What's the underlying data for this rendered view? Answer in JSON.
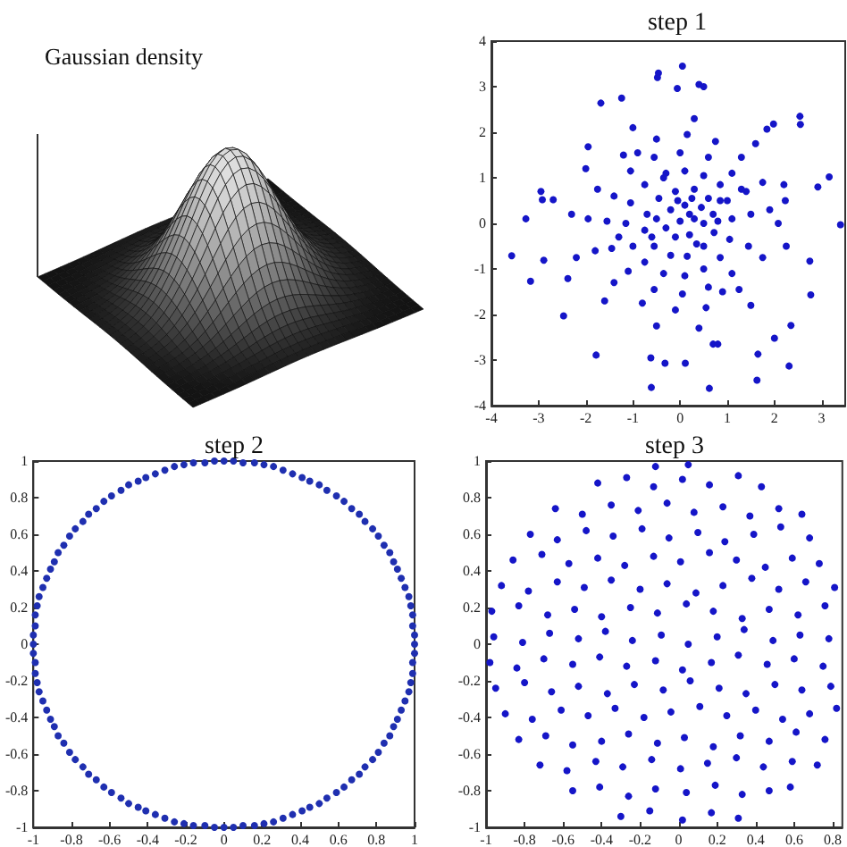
{
  "chart_data": [
    {
      "type": "other",
      "title": "Gaussian density"
    },
    {
      "type": "scatter",
      "title": "step 1",
      "color": "#1515c8",
      "marker": "circle",
      "x": [
        0.05,
        -0.46,
        -0.48,
        -0.06,
        0.4,
        0.5,
        -1.68,
        -1.24,
        2.54,
        2.55,
        2.92,
        3.16,
        3.4,
        -2.95,
        -2.92,
        -3.27,
        -3.57,
        -3.17,
        -2.47,
        -1.78,
        -0.62,
        -0.61,
        -0.32,
        0.11,
        0.62,
        1.65,
        1.63,
        2.31,
        2.77,
        2.75,
        2.35,
        2.0,
        0.7,
        0.8,
        -1.95,
        -2.69,
        -2.89,
        -2.38,
        2.23,
        2.08,
        1.84,
        1.98,
        0.3,
        0.1,
        -0.2,
        -0.3,
        -0.1,
        0.2,
        0.45,
        0,
        0.2,
        0.5,
        -0.5,
        0.35,
        -0.05,
        0.8,
        -0.6,
        0.25,
        0.7,
        0.6,
        0.3,
        -0.1,
        -0.45,
        -0.7,
        -0.75,
        -0.55,
        -0.2,
        0.15,
        0.5,
        0.72,
        0.85,
        -0.35,
        1.1,
        1.0,
        0.85,
        0.5,
        0.1,
        -0.3,
        -0.75,
        -1.05,
        -1.15,
        -1.0,
        -0.75,
        -0.35,
        0.1,
        0.5,
        0.85,
        1.05,
        1.3,
        -1.3,
        1.5,
        1.4,
        1.1,
        0.6,
        0,
        -0.55,
        -1.05,
        -1.4,
        -1.55,
        -1.45,
        -1.1,
        -0.55,
        0.05,
        0.6,
        1.1,
        1.45,
        -0.9,
        0.9,
        1.9,
        1.75,
        1.3,
        0.75,
        0.15,
        -0.5,
        -1.2,
        -1.75,
        -1.95,
        -1.8,
        -1.4,
        -0.8,
        -0.1,
        0.55,
        1.25,
        1.75,
        2.2,
        1.6,
        0.3,
        -1.0,
        -2.0,
        -2.3,
        -2.2,
        -1.6,
        -0.5,
        0.4,
        1.5,
        2.25
      ],
      "values": [
        3.45,
        3.3,
        3.2,
        2.96,
        3.05,
        3.0,
        2.64,
        2.75,
        2.35,
        2.17,
        0.8,
        1.02,
        -0.03,
        0.7,
        0.52,
        0.1,
        -0.71,
        -1.27,
        -2.03,
        -2.89,
        -2.95,
        -3.6,
        -3.07,
        -3.07,
        -3.62,
        -2.87,
        -3.44,
        -3.13,
        -1.57,
        -0.83,
        -2.24,
        -2.52,
        -2.65,
        -2.65,
        1.68,
        0.52,
        -0.81,
        -1.21,
        0.5,
        0.0,
        2.07,
        2.18,
        0.1,
        0.4,
        0.3,
        -0.1,
        -0.3,
        -0.25,
        0.35,
        0.05,
        0.2,
        0,
        0.1,
        -0.45,
        0.5,
        0.05,
        -0.3,
        0.55,
        0.2,
        0.55,
        0.75,
        0.7,
        0.55,
        0.2,
        -0.15,
        -0.5,
        -0.7,
        -0.72,
        -0.5,
        -0.2,
        0.5,
        1.0,
        0.1,
        0.5,
        0.85,
        1.05,
        1.15,
        1.1,
        0.85,
        0.45,
        0,
        -0.5,
        -0.85,
        -1.1,
        -1.15,
        -1.0,
        -0.75,
        -0.35,
        0.75,
        -0.3,
        0.2,
        0.7,
        1.1,
        1.45,
        1.55,
        1.45,
        1.15,
        0.6,
        0.05,
        -0.55,
        -1.05,
        -1.45,
        -1.55,
        -1.4,
        -1.1,
        -0.5,
        1.55,
        -1.5,
        0.3,
        0.9,
        1.45,
        1.8,
        1.95,
        1.85,
        1.5,
        0.75,
        0.1,
        -0.6,
        -1.3,
        -1.75,
        -1.9,
        -1.85,
        -1.45,
        -0.75,
        0.85,
        1.75,
        2.3,
        2.1,
        1.2,
        0.2,
        -0.75,
        -1.7,
        -2.25,
        -2.3,
        -1.8,
        -0.5
      ],
      "xlim": [
        -4,
        3.5
      ],
      "xticks": [
        -4,
        -3,
        -2,
        -1,
        0,
        1,
        2,
        3
      ],
      "ylim": [
        -4,
        4
      ],
      "yticks": [
        -4,
        -3,
        -2,
        -1,
        0,
        1,
        2,
        3,
        4
      ]
    },
    {
      "type": "scatter",
      "title": "step 2",
      "color": "#1f2fb0",
      "marker": "circle",
      "x": [
        1,
        1,
        0.99,
        0.99,
        0.98,
        0.97,
        0.95,
        0.93,
        0.91,
        0.89,
        0.87,
        0.84,
        0.81,
        0.78,
        0.74,
        0.71,
        0.67,
        0.63,
        0.59,
        0.54,
        0.5,
        0.45,
        0.41,
        0.36,
        0.31,
        0.26,
        0.21,
        0.16,
        0.1,
        0.05,
        0,
        -0.05,
        -0.1,
        -0.16,
        -0.21,
        -0.26,
        -0.31,
        -0.36,
        -0.41,
        -0.45,
        -0.5,
        -0.54,
        -0.59,
        -0.63,
        -0.67,
        -0.71,
        -0.74,
        -0.78,
        -0.81,
        -0.84,
        -0.87,
        -0.89,
        -0.91,
        -0.93,
        -0.95,
        -0.97,
        -0.98,
        -0.99,
        -0.99,
        -1,
        -1,
        -1,
        -0.99,
        -0.99,
        -0.98,
        -0.97,
        -0.95,
        -0.93,
        -0.91,
        -0.89,
        -0.87,
        -0.84,
        -0.81,
        -0.78,
        -0.74,
        -0.71,
        -0.67,
        -0.63,
        -0.59,
        -0.54,
        -0.5,
        -0.45,
        -0.41,
        -0.36,
        -0.31,
        -0.26,
        -0.21,
        -0.16,
        -0.1,
        -0.05,
        0,
        0.05,
        0.1,
        0.16,
        0.21,
        0.26,
        0.31,
        0.36,
        0.41,
        0.45,
        0.5,
        0.54,
        0.59,
        0.63,
        0.67,
        0.71,
        0.74,
        0.78,
        0.81,
        0.84,
        0.87,
        0.89,
        0.91,
        0.93,
        0.95,
        0.97,
        0.98,
        0.99,
        0.99,
        1
      ],
      "values": [
        0,
        0.05,
        0.1,
        0.16,
        0.21,
        0.26,
        0.31,
        0.36,
        0.41,
        0.45,
        0.5,
        0.54,
        0.59,
        0.63,
        0.67,
        0.71,
        0.74,
        0.78,
        0.81,
        0.84,
        0.87,
        0.89,
        0.91,
        0.93,
        0.95,
        0.97,
        0.98,
        0.99,
        0.99,
        1,
        1,
        1,
        0.99,
        0.99,
        0.98,
        0.97,
        0.95,
        0.93,
        0.91,
        0.89,
        0.87,
        0.84,
        0.81,
        0.78,
        0.74,
        0.71,
        0.67,
        0.63,
        0.59,
        0.54,
        0.5,
        0.45,
        0.41,
        0.36,
        0.31,
        0.26,
        0.21,
        0.16,
        0.1,
        0.05,
        0,
        -0.05,
        -0.1,
        -0.16,
        -0.21,
        -0.26,
        -0.31,
        -0.36,
        -0.41,
        -0.45,
        -0.5,
        -0.54,
        -0.59,
        -0.63,
        -0.67,
        -0.71,
        -0.74,
        -0.78,
        -0.81,
        -0.84,
        -0.87,
        -0.89,
        -0.91,
        -0.93,
        -0.95,
        -0.97,
        -0.98,
        -0.99,
        -0.99,
        -1,
        -1,
        -1,
        -0.99,
        -0.99,
        -0.98,
        -0.97,
        -0.95,
        -0.93,
        -0.91,
        -0.89,
        -0.87,
        -0.84,
        -0.81,
        -0.78,
        -0.74,
        -0.71,
        -0.67,
        -0.63,
        -0.59,
        -0.54,
        -0.5,
        -0.45,
        -0.41,
        -0.36,
        -0.31,
        -0.26,
        -0.21,
        -0.16,
        -0.1,
        -0.05
      ],
      "xlim": [
        -1,
        1
      ],
      "xticks": [
        -1,
        -0.8,
        -0.6,
        -0.4,
        -0.2,
        0,
        0.2,
        0.4,
        0.6,
        0.8,
        1
      ],
      "ylim": [
        -1,
        1
      ],
      "yticks": [
        -1,
        -0.8,
        -0.6,
        -0.4,
        -0.2,
        0,
        0.2,
        0.4,
        0.6,
        0.8,
        1
      ]
    },
    {
      "type": "scatter",
      "title": "step 3",
      "color": "#1515c8",
      "marker": "circle",
      "x": [
        -0.3,
        -0.15,
        0.02,
        0.17,
        0.31,
        -0.55,
        -0.41,
        -0.26,
        -0.12,
        0.04,
        0.19,
        0.33,
        0.47,
        0.58,
        -0.72,
        -0.58,
        -0.43,
        -0.29,
        -0.14,
        0.01,
        0.15,
        0.3,
        0.44,
        0.59,
        0.72,
        -0.83,
        -0.69,
        -0.55,
        -0.4,
        -0.26,
        -0.11,
        0.03,
        0.18,
        0.32,
        0.47,
        0.61,
        0.76,
        -0.9,
        -0.76,
        -0.61,
        -0.47,
        -0.33,
        -0.18,
        -0.04,
        0.11,
        0.25,
        0.4,
        0.54,
        0.68,
        0.82,
        -0.95,
        -0.8,
        -0.66,
        -0.52,
        -0.37,
        -0.23,
        -0.08,
        0.06,
        0.21,
        0.35,
        0.5,
        0.64,
        0.79,
        -0.98,
        -0.84,
        -0.7,
        -0.55,
        -0.41,
        -0.27,
        -0.12,
        0.02,
        0.17,
        0.31,
        0.46,
        0.6,
        0.75,
        -0.96,
        -0.81,
        -0.67,
        -0.52,
        -0.38,
        -0.24,
        -0.09,
        0.05,
        0.2,
        0.34,
        0.49,
        0.63,
        0.78,
        -0.97,
        -0.83,
        -0.68,
        -0.54,
        -0.4,
        -0.25,
        -0.11,
        0.04,
        0.18,
        0.33,
        0.47,
        0.62,
        0.76,
        -0.92,
        -0.78,
        -0.63,
        -0.49,
        -0.35,
        -0.2,
        -0.06,
        0.09,
        0.23,
        0.38,
        0.52,
        0.66,
        0.81,
        -0.86,
        -0.71,
        -0.57,
        -0.42,
        -0.28,
        -0.13,
        0.01,
        0.16,
        0.3,
        0.45,
        0.59,
        0.73,
        -0.77,
        -0.63,
        -0.48,
        -0.34,
        -0.19,
        -0.05,
        0.1,
        0.24,
        0.39,
        0.53,
        0.68,
        -0.64,
        -0.5,
        -0.35,
        -0.21,
        -0.06,
        0.08,
        0.23,
        0.37,
        0.52,
        0.64,
        -0.42,
        -0.27,
        -0.13,
        0.02,
        0.16,
        0.31,
        0.43,
        -0.12,
        0.05
      ],
      "values": [
        -0.94,
        -0.91,
        -0.96,
        -0.92,
        -0.95,
        -0.8,
        -0.78,
        -0.83,
        -0.79,
        -0.81,
        -0.77,
        -0.82,
        -0.8,
        -0.78,
        -0.66,
        -0.69,
        -0.64,
        -0.67,
        -0.63,
        -0.68,
        -0.65,
        -0.62,
        -0.67,
        -0.64,
        -0.66,
        -0.52,
        -0.5,
        -0.55,
        -0.53,
        -0.49,
        -0.54,
        -0.51,
        -0.56,
        -0.5,
        -0.53,
        -0.48,
        -0.52,
        -0.38,
        -0.41,
        -0.36,
        -0.39,
        -0.35,
        -0.4,
        -0.37,
        -0.34,
        -0.39,
        -0.36,
        -0.41,
        -0.38,
        -0.35,
        -0.24,
        -0.21,
        -0.26,
        -0.23,
        -0.27,
        -0.22,
        -0.25,
        -0.2,
        -0.24,
        -0.27,
        -0.22,
        -0.25,
        -0.23,
        -0.1,
        -0.13,
        -0.08,
        -0.11,
        -0.07,
        -0.12,
        -0.09,
        -0.14,
        -0.1,
        -0.06,
        -0.11,
        -0.08,
        -0.12,
        0.04,
        0.01,
        0.06,
        0.03,
        0.07,
        0.02,
        0.05,
        0,
        0.04,
        0.08,
        0.02,
        0.05,
        0.03,
        0.18,
        0.21,
        0.16,
        0.19,
        0.15,
        0.2,
        0.17,
        0.22,
        0.18,
        0.14,
        0.19,
        0.16,
        0.21,
        0.32,
        0.29,
        0.34,
        0.31,
        0.35,
        0.3,
        0.33,
        0.28,
        0.32,
        0.36,
        0.3,
        0.34,
        0.31,
        0.46,
        0.49,
        0.44,
        0.47,
        0.43,
        0.48,
        0.45,
        0.5,
        0.46,
        0.42,
        0.47,
        0.44,
        0.6,
        0.57,
        0.62,
        0.59,
        0.63,
        0.58,
        0.61,
        0.56,
        0.6,
        0.64,
        0.58,
        0.74,
        0.71,
        0.76,
        0.73,
        0.77,
        0.72,
        0.75,
        0.7,
        0.74,
        0.71,
        0.88,
        0.91,
        0.86,
        0.9,
        0.87,
        0.92,
        0.86,
        0.97,
        0.98
      ],
      "xlim": [
        -1,
        0.85
      ],
      "xticks": [
        -1,
        -0.8,
        -0.6,
        -0.4,
        -0.2,
        0,
        0.2,
        0.4,
        0.6,
        0.8
      ],
      "ylim": [
        -1,
        1
      ],
      "yticks": [
        -1,
        -0.8,
        -0.6,
        -0.4,
        -0.2,
        0,
        0.2,
        0.4,
        0.6,
        0.8,
        1
      ]
    }
  ]
}
